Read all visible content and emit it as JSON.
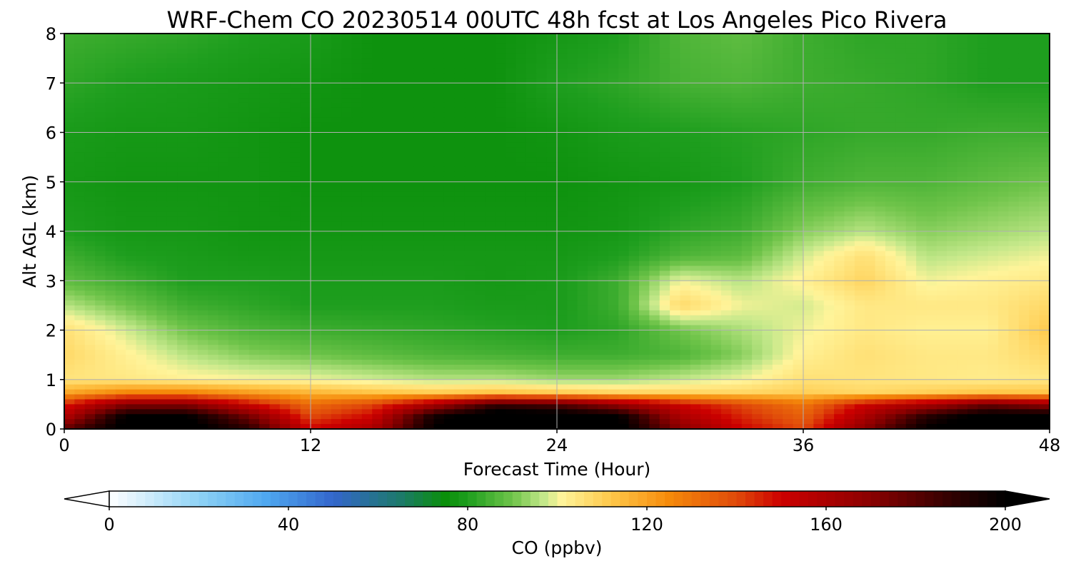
{
  "chart_data": {
    "type": "heatmap",
    "title": "WRF-Chem CO  20230514 00UTC 48h fcst at Los Angeles Pico Rivera",
    "xlabel": "Forecast Time (Hour)",
    "ylabel": "Alt AGL (km)",
    "xlim": [
      0,
      48
    ],
    "ylim": [
      0,
      8
    ],
    "xticks": [
      "0",
      "12",
      "24",
      "36",
      "48"
    ],
    "yticks": [
      "0",
      "1",
      "2",
      "3",
      "4",
      "5",
      "6",
      "7",
      "8"
    ],
    "grid": true,
    "x": [
      0,
      3,
      6,
      9,
      12,
      15,
      18,
      21,
      24,
      27,
      30,
      33,
      36,
      39,
      42,
      45,
      48
    ],
    "y": [
      0,
      0.25,
      0.5,
      0.75,
      1,
      1.5,
      2,
      2.5,
      3,
      3.5,
      4,
      5,
      6,
      7,
      8
    ],
    "values": [
      [
        178,
        205,
        205,
        190,
        150,
        160,
        200,
        210,
        210,
        205,
        170,
        150,
        140,
        170,
        200,
        210,
        210
      ],
      [
        158,
        200,
        200,
        175,
        140,
        150,
        195,
        210,
        208,
        200,
        160,
        145,
        135,
        160,
        190,
        205,
        205
      ],
      [
        145,
        170,
        170,
        150,
        132,
        140,
        160,
        185,
        180,
        165,
        150,
        140,
        130,
        150,
        160,
        175,
        165
      ],
      [
        118,
        125,
        125,
        120,
        115,
        112,
        110,
        112,
        110,
        108,
        108,
        108,
        110,
        108,
        110,
        112,
        112
      ],
      [
        105,
        104,
        102,
        101,
        100,
        98,
        96,
        96,
        94,
        94,
        97,
        100,
        106,
        105,
        104,
        103,
        104
      ],
      [
        108,
        102,
        96,
        92,
        90,
        88,
        86,
        85,
        84,
        84,
        86,
        92,
        102,
        106,
        104,
        104,
        108
      ],
      [
        106,
        98,
        90,
        86,
        84,
        83,
        82,
        81,
        80,
        82,
        90,
        95,
        100,
        104,
        102,
        102,
        112
      ],
      [
        96,
        90,
        84,
        82,
        80,
        80,
        80,
        79,
        79,
        84,
        108,
        100,
        98,
        104,
        104,
        104,
        108
      ],
      [
        88,
        84,
        80,
        80,
        79,
        79,
        79,
        78,
        79,
        84,
        100,
        96,
        102,
        109,
        100,
        102,
        104
      ],
      [
        84,
        80,
        79,
        78,
        78,
        78,
        78,
        78,
        78,
        80,
        86,
        88,
        98,
        106,
        96,
        98,
        100
      ],
      [
        80,
        78,
        78,
        77,
        77,
        77,
        77,
        77,
        77,
        78,
        82,
        84,
        92,
        96,
        92,
        94,
        96
      ],
      [
        78,
        77,
        77,
        77,
        76,
        76,
        76,
        76,
        76,
        77,
        78,
        80,
        84,
        86,
        86,
        88,
        90
      ],
      [
        79,
        78,
        78,
        77,
        76,
        76,
        76,
        76,
        77,
        79,
        80,
        81,
        82,
        83,
        83,
        84,
        84
      ],
      [
        82,
        80,
        79,
        78,
        77,
        76,
        76,
        76,
        80,
        82,
        85,
        86,
        84,
        83,
        82,
        80,
        80
      ],
      [
        84,
        83,
        82,
        80,
        79,
        76,
        76,
        76,
        78,
        80,
        86,
        88,
        84,
        82,
        82,
        80,
        80
      ]
    ],
    "colorbar": {
      "label": "CO  (ppbv)",
      "ticks": [
        "0",
        "40",
        "80",
        "120",
        "160",
        "200"
      ],
      "range": [
        0,
        200
      ],
      "extend": "both",
      "stops": [
        {
          "v": 0,
          "color": "#ffffff"
        },
        {
          "v": 20,
          "color": "#8fd3f5"
        },
        {
          "v": 35,
          "color": "#4fa8f0"
        },
        {
          "v": 50,
          "color": "#3366cc"
        },
        {
          "v": 65,
          "color": "#1d7a6a"
        },
        {
          "v": 75,
          "color": "#0a8f0a"
        },
        {
          "v": 80,
          "color": "#1e9e1e"
        },
        {
          "v": 90,
          "color": "#6fc44a"
        },
        {
          "v": 97,
          "color": "#c4e88a"
        },
        {
          "v": 101,
          "color": "#fff49a"
        },
        {
          "v": 112,
          "color": "#ffc84a"
        },
        {
          "v": 125,
          "color": "#f58a0a"
        },
        {
          "v": 140,
          "color": "#e04a0a"
        },
        {
          "v": 150,
          "color": "#cc0000"
        },
        {
          "v": 170,
          "color": "#8a0000"
        },
        {
          "v": 188,
          "color": "#300000"
        },
        {
          "v": 200,
          "color": "#000000"
        }
      ]
    }
  }
}
